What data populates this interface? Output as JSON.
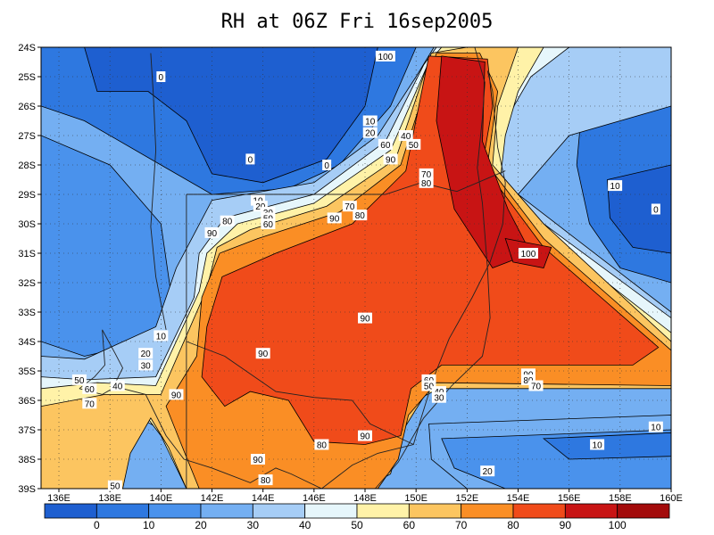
{
  "chart_data": {
    "type": "heatmap",
    "title": "RH at 06Z Fri 16sep2005",
    "xlabel": "",
    "ylabel": "",
    "x_ticks": [
      "136E",
      "138E",
      "140E",
      "142E",
      "144E",
      "146E",
      "148E",
      "150E",
      "152E",
      "154E",
      "156E",
      "158E",
      "160E"
    ],
    "y_ticks": [
      "24S",
      "25S",
      "26S",
      "27S",
      "28S",
      "29S",
      "30S",
      "31S",
      "32S",
      "33S",
      "34S",
      "35S",
      "36S",
      "37S",
      "38S",
      "39S"
    ],
    "xlim": [
      135.3,
      160
    ],
    "ylim": [
      -39,
      -24
    ],
    "grid": true,
    "colorbar": {
      "levels": [
        0,
        10,
        20,
        30,
        40,
        50,
        60,
        70,
        80,
        90,
        100
      ],
      "labels": [
        "0",
        "10",
        "20",
        "30",
        "40",
        "50",
        "60",
        "70",
        "80",
        "90",
        "100"
      ],
      "colors": [
        "#1e5fd0",
        "#2e78e0",
        "#4a92ec",
        "#74aff2",
        "#a6cdf6",
        "#e6f6fb",
        "#fff2a8",
        "#fcc560",
        "#fa8e25",
        "#f04b1a",
        "#c81414",
        "#a30b0b"
      ]
    },
    "contour_labels": [
      {
        "text": "100",
        "lon": 148.8,
        "lat": -24.3
      },
      {
        "text": "0",
        "lon": 140.0,
        "lat": -25.0
      },
      {
        "text": "10",
        "lon": 148.2,
        "lat": -26.5
      },
      {
        "text": "20",
        "lon": 148.2,
        "lat": -26.9
      },
      {
        "text": "40",
        "lon": 149.6,
        "lat": -27.0
      },
      {
        "text": "50",
        "lon": 149.9,
        "lat": -27.3
      },
      {
        "text": "60",
        "lon": 148.8,
        "lat": -27.3
      },
      {
        "text": "0",
        "lon": 143.5,
        "lat": -27.8
      },
      {
        "text": "0",
        "lon": 146.5,
        "lat": -28.0
      },
      {
        "text": "90",
        "lon": 149.0,
        "lat": -27.8
      },
      {
        "text": "70",
        "lon": 150.4,
        "lat": -28.3
      },
      {
        "text": "80",
        "lon": 150.4,
        "lat": -28.6
      },
      {
        "text": "10",
        "lon": 157.8,
        "lat": -28.7
      },
      {
        "text": "10",
        "lon": 143.8,
        "lat": -29.2
      },
      {
        "text": "20",
        "lon": 143.9,
        "lat": -29.4
      },
      {
        "text": "30",
        "lon": 144.2,
        "lat": -29.6
      },
      {
        "text": "50",
        "lon": 144.2,
        "lat": -29.8
      },
      {
        "text": "60",
        "lon": 144.2,
        "lat": -30.0
      },
      {
        "text": "70",
        "lon": 147.4,
        "lat": -29.4
      },
      {
        "text": "80",
        "lon": 147.8,
        "lat": -29.7
      },
      {
        "text": "90",
        "lon": 146.8,
        "lat": -29.8
      },
      {
        "text": "80",
        "lon": 142.6,
        "lat": -29.9
      },
      {
        "text": "90",
        "lon": 142.0,
        "lat": -30.3
      },
      {
        "text": "0",
        "lon": 159.4,
        "lat": -29.5
      },
      {
        "text": "100",
        "lon": 154.4,
        "lat": -31.0
      },
      {
        "text": "90",
        "lon": 148.0,
        "lat": -33.2
      },
      {
        "text": "10",
        "lon": 140.0,
        "lat": -33.8
      },
      {
        "text": "20",
        "lon": 139.4,
        "lat": -34.4
      },
      {
        "text": "30",
        "lon": 139.4,
        "lat": -34.8
      },
      {
        "text": "90",
        "lon": 144.0,
        "lat": -34.4
      },
      {
        "text": "40",
        "lon": 138.3,
        "lat": -35.5
      },
      {
        "text": "50",
        "lon": 136.8,
        "lat": -35.3
      },
      {
        "text": "60",
        "lon": 137.2,
        "lat": -35.6
      },
      {
        "text": "70",
        "lon": 137.2,
        "lat": -36.1
      },
      {
        "text": "90",
        "lon": 140.6,
        "lat": -35.8
      },
      {
        "text": "60",
        "lon": 150.5,
        "lat": -35.3
      },
      {
        "text": "50",
        "lon": 150.5,
        "lat": -35.5
      },
      {
        "text": "40",
        "lon": 150.9,
        "lat": -35.7
      },
      {
        "text": "30",
        "lon": 150.9,
        "lat": -35.9
      },
      {
        "text": "90",
        "lon": 154.4,
        "lat": -35.1
      },
      {
        "text": "80",
        "lon": 154.4,
        "lat": -35.3
      },
      {
        "text": "70",
        "lon": 154.7,
        "lat": -35.5
      },
      {
        "text": "10",
        "lon": 159.4,
        "lat": -36.9
      },
      {
        "text": "10",
        "lon": 157.1,
        "lat": -37.5
      },
      {
        "text": "90",
        "lon": 148.0,
        "lat": -37.2
      },
      {
        "text": "80",
        "lon": 146.3,
        "lat": -37.5
      },
      {
        "text": "90",
        "lon": 143.8,
        "lat": -38.0
      },
      {
        "text": "20",
        "lon": 152.8,
        "lat": -38.4
      },
      {
        "text": "50",
        "lon": 138.2,
        "lat": -38.9
      },
      {
        "text": "80",
        "lon": 144.1,
        "lat": -38.7
      }
    ]
  }
}
